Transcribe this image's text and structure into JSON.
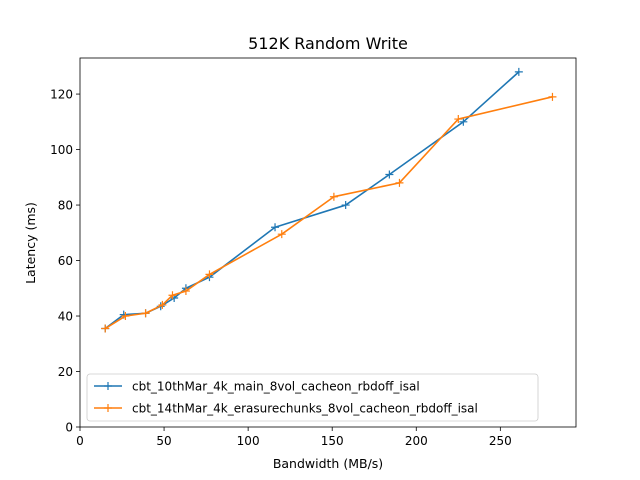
{
  "chart_data": {
    "type": "line",
    "title": "512K  Random Write",
    "xlabel": "Bandwidth (MB/s)",
    "ylabel": "Latency (ms)",
    "xlim": [
      0,
      295
    ],
    "ylim": [
      0,
      133
    ],
    "xticks": [
      0,
      50,
      100,
      150,
      200,
      250
    ],
    "yticks": [
      0,
      20,
      40,
      60,
      80,
      100,
      120
    ],
    "grid": false,
    "legend_position": "lower-right",
    "series": [
      {
        "name": "cbt_10thMar_4k_main_8vol_cacheon_rbdoff_isal",
        "color": "#1f77b4",
        "marker": "plus",
        "points": [
          [
            15,
            35.5
          ],
          [
            26,
            40.5
          ],
          [
            39,
            41
          ],
          [
            48,
            43.5
          ],
          [
            56,
            46.5
          ],
          [
            63,
            50
          ],
          [
            77,
            54
          ],
          [
            116,
            72
          ],
          [
            158,
            80
          ],
          [
            184,
            91
          ],
          [
            228,
            110
          ],
          [
            261,
            128
          ]
        ]
      },
      {
        "name": "cbt_14thMar_4k_erasurechunks_8vol_cacheon_rbdoff_isal",
        "color": "#ff7f0e",
        "marker": "plus",
        "points": [
          [
            15,
            35.5
          ],
          [
            27,
            40
          ],
          [
            39,
            41
          ],
          [
            49,
            44
          ],
          [
            55,
            47.5
          ],
          [
            63,
            49
          ],
          [
            77,
            55
          ],
          [
            120,
            69.5
          ],
          [
            151,
            83
          ],
          [
            190,
            88
          ],
          [
            225,
            111
          ],
          [
            281,
            119
          ]
        ]
      }
    ]
  }
}
